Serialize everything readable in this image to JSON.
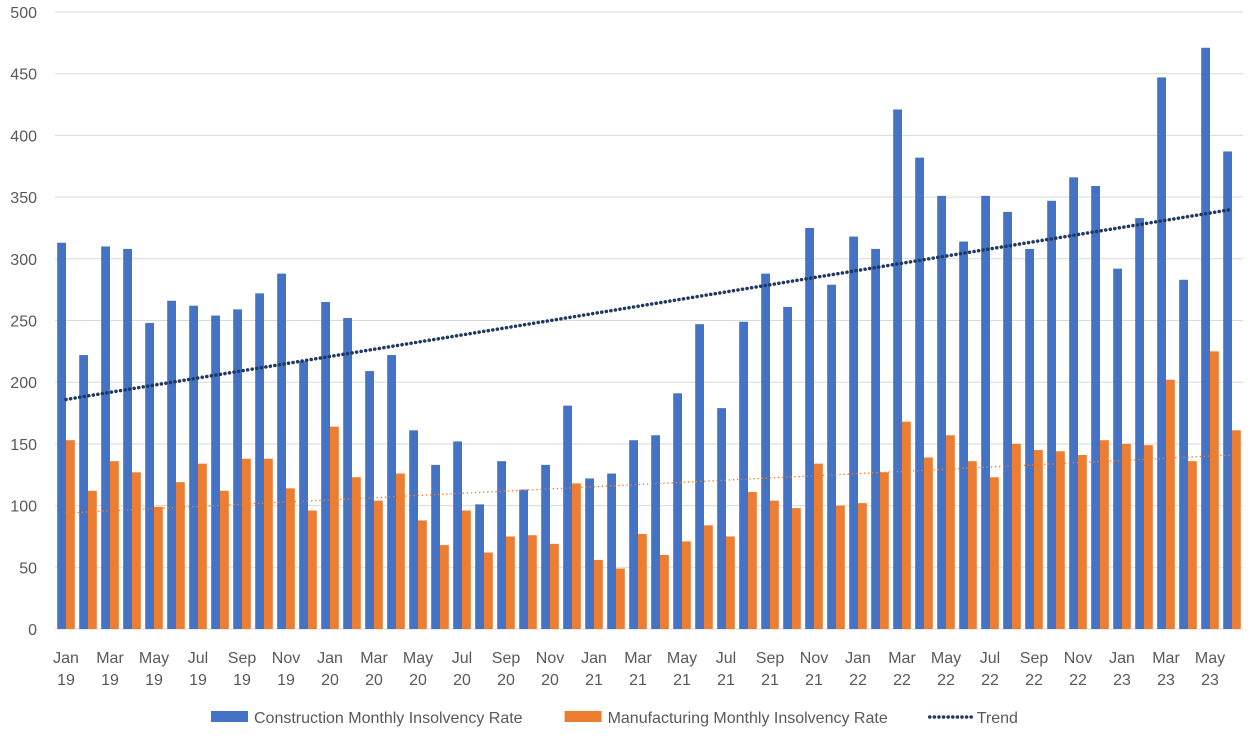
{
  "chart_data": {
    "type": "bar",
    "categories": [
      [
        "Jan",
        "19"
      ],
      null,
      [
        "Mar",
        "19"
      ],
      null,
      [
        "May",
        "19"
      ],
      null,
      [
        "Jul",
        "19"
      ],
      null,
      [
        "Sep",
        "19"
      ],
      null,
      [
        "Nov",
        "19"
      ],
      null,
      [
        "Jan",
        "20"
      ],
      null,
      [
        "Mar",
        "20"
      ],
      null,
      [
        "May",
        "20"
      ],
      null,
      [
        "Jul",
        "20"
      ],
      null,
      [
        "Sep",
        "20"
      ],
      null,
      [
        "Nov",
        "20"
      ],
      null,
      [
        "Jan",
        "21"
      ],
      null,
      [
        "Mar",
        "21"
      ],
      null,
      [
        "May",
        "21"
      ],
      null,
      [
        "Jul",
        "21"
      ],
      null,
      [
        "Sep",
        "21"
      ],
      null,
      [
        "Nov",
        "21"
      ],
      null,
      [
        "Jan",
        "22"
      ],
      null,
      [
        "Mar",
        "22"
      ],
      null,
      [
        "May",
        "22"
      ],
      null,
      [
        "Jul",
        "22"
      ],
      null,
      [
        "Sep",
        "22"
      ],
      null,
      [
        "Nov",
        "22"
      ],
      null,
      [
        "Jan",
        "23"
      ],
      null,
      [
        "Mar",
        "23"
      ],
      null,
      [
        "May",
        "23"
      ],
      null
    ],
    "series": [
      {
        "name": "Construction Monthly Insolvency Rate",
        "color": "#4472c4",
        "values": [
          313,
          222,
          310,
          308,
          248,
          266,
          262,
          254,
          259,
          272,
          288,
          217,
          265,
          252,
          209,
          222,
          161,
          133,
          152,
          101,
          136,
          113,
          133,
          181,
          122,
          126,
          153,
          157,
          191,
          247,
          179,
          249,
          288,
          261,
          325,
          279,
          318,
          308,
          421,
          382,
          351,
          314,
          351,
          338,
          308,
          347,
          366,
          359,
          292,
          333,
          447,
          283,
          471,
          387
        ]
      },
      {
        "name": "Manufacturing Monthly Insolvency Rate",
        "color": "#ed7d31",
        "values": [
          153,
          112,
          136,
          127,
          99,
          119,
          134,
          112,
          138,
          138,
          114,
          96,
          164,
          123,
          104,
          126,
          88,
          68,
          96,
          62,
          75,
          76,
          69,
          118,
          56,
          49,
          77,
          60,
          71,
          84,
          75,
          111,
          104,
          98,
          134,
          100,
          102,
          127,
          168,
          139,
          157,
          136,
          123,
          150,
          145,
          144,
          141,
          153,
          150,
          149,
          202,
          136,
          225,
          161
        ]
      }
    ],
    "trend_lines": [
      {
        "name": "Trend",
        "color": "#1f3864",
        "start": 186,
        "end": 340
      },
      {
        "color": "#ed7d31",
        "start": 94,
        "end": 141
      }
    ],
    "ylim": [
      0,
      500
    ],
    "yticks": [
      0,
      50,
      100,
      150,
      200,
      250,
      300,
      350,
      400,
      450,
      500
    ],
    "grid": true
  }
}
